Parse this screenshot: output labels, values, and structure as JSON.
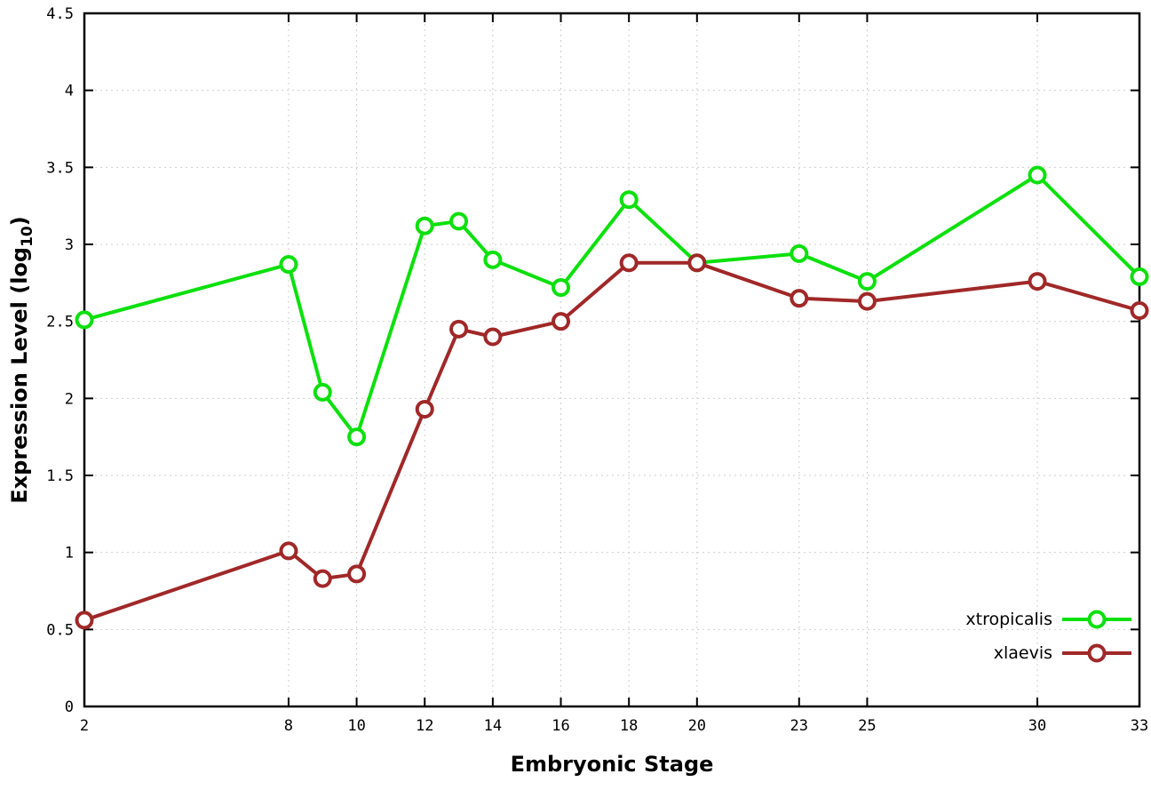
{
  "chart_data": {
    "type": "line",
    "title": "",
    "xlabel": "Embryonic Stage",
    "ylabel": "Expression Level (log10)",
    "ylabel_parts": {
      "main": "Expression Level (log",
      "sub": "10",
      "end": ")"
    },
    "xlim": [
      2,
      33
    ],
    "ylim": [
      0,
      4.5
    ],
    "x_ticks": [
      2,
      8,
      10,
      12,
      14,
      16,
      18,
      20,
      23,
      25,
      30,
      33
    ],
    "y_ticks": [
      0,
      0.5,
      1,
      1.5,
      2,
      2.5,
      3,
      3.5,
      4,
      4.5
    ],
    "grid": true,
    "legend_position": "bottom-right",
    "x": [
      2,
      8,
      9,
      10,
      12,
      13,
      14,
      16,
      18,
      20,
      23,
      25,
      30,
      33
    ],
    "series": [
      {
        "name": "xtropicalis",
        "color": "#0ce00c",
        "values": [
          2.51,
          2.87,
          2.04,
          1.75,
          3.12,
          3.15,
          2.9,
          2.72,
          3.29,
          2.88,
          2.94,
          2.76,
          3.45,
          2.79
        ]
      },
      {
        "name": "xlaevis",
        "color": "#a02828",
        "values": [
          0.56,
          1.01,
          0.83,
          0.86,
          1.93,
          2.45,
          2.4,
          2.5,
          2.88,
          2.88,
          2.65,
          2.63,
          2.76,
          2.57
        ]
      }
    ]
  }
}
